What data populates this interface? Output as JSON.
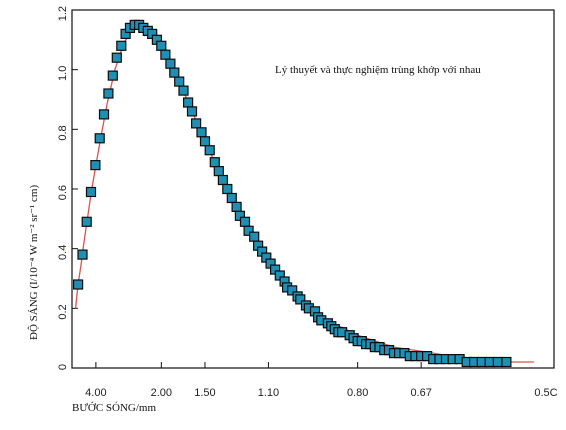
{
  "chart_data": {
    "type": "scatter",
    "annotation": "Lý thuyết và thực nghiệm trùng khớp với nhau",
    "xlabel": "BƯỚC SÓNG/mm",
    "ylabel": "ĐỘ SÁNG (I/10⁻⁴ W m⁻² sr⁻¹ cm)",
    "x_scale": "reciprocal",
    "xlim": [
      6.3,
      0.5
    ],
    "ylim": [
      0,
      1.2
    ],
    "x_ticks": [
      {
        "value": 4.0,
        "label": "4.00"
      },
      {
        "value": 2.0,
        "label": "2.00"
      },
      {
        "value": 1.5,
        "label": "1.50"
      },
      {
        "value": 1.1,
        "label": "1.10"
      },
      {
        "value": 0.8,
        "label": "0.80"
      },
      {
        "value": 0.67,
        "label": "0.67"
      },
      {
        "value": 0.5,
        "label": "0.5C"
      }
    ],
    "y_ticks": [
      {
        "value": 0,
        "label": "0"
      },
      {
        "value": 0.2,
        "label": "0.2"
      },
      {
        "value": 0.4,
        "label": "0.4"
      },
      {
        "value": 0.6,
        "label": "0.6"
      },
      {
        "value": 0.8,
        "label": "0.8"
      },
      {
        "value": 1.0,
        "label": "1.0"
      },
      {
        "value": 1.2,
        "label": "1.2"
      }
    ],
    "colors": {
      "points": "#1f8fb3",
      "curve": "#d9534f",
      "axis": "#111111"
    },
    "series": [
      {
        "kind": "points",
        "x": [
          5.49,
          5.03,
          4.65,
          4.32,
          4.03,
          3.78,
          3.56,
          3.36,
          3.18,
          3.03,
          2.88,
          2.75,
          2.63,
          2.51,
          2.41,
          2.32,
          2.23,
          2.15,
          2.07,
          2.0,
          1.94,
          1.87,
          1.82,
          1.76,
          1.71,
          1.66,
          1.62,
          1.58,
          1.53,
          1.5,
          1.46,
          1.42,
          1.39,
          1.36,
          1.33,
          1.3,
          1.27,
          1.25,
          1.22,
          1.2,
          1.17,
          1.15,
          1.13,
          1.11,
          1.09,
          1.07,
          1.05,
          1.03,
          1.02,
          1.0,
          0.98,
          0.97,
          0.95,
          0.94,
          0.92,
          0.91,
          0.9,
          0.88,
          0.87,
          0.86,
          0.85,
          0.84,
          0.82,
          0.81,
          0.8,
          0.79,
          0.78,
          0.77,
          0.76,
          0.75,
          0.74,
          0.73,
          0.72,
          0.71,
          0.7,
          0.69,
          0.68,
          0.67,
          0.66,
          0.65,
          0.64,
          0.63,
          0.62,
          0.61,
          0.6,
          0.59,
          0.58,
          0.57,
          0.56,
          0.55
        ],
        "y": [
          0.28,
          0.38,
          0.49,
          0.59,
          0.68,
          0.77,
          0.85,
          0.92,
          0.98,
          1.04,
          1.08,
          1.12,
          1.14,
          1.15,
          1.15,
          1.14,
          1.13,
          1.12,
          1.1,
          1.08,
          1.05,
          1.02,
          0.99,
          0.96,
          0.93,
          0.89,
          0.86,
          0.82,
          0.79,
          0.76,
          0.73,
          0.69,
          0.66,
          0.63,
          0.6,
          0.57,
          0.54,
          0.51,
          0.49,
          0.46,
          0.44,
          0.41,
          0.39,
          0.37,
          0.35,
          0.33,
          0.31,
          0.29,
          0.27,
          0.26,
          0.24,
          0.23,
          0.21,
          0.2,
          0.19,
          0.17,
          0.16,
          0.15,
          0.14,
          0.13,
          0.12,
          0.12,
          0.11,
          0.1,
          0.09,
          0.09,
          0.08,
          0.08,
          0.07,
          0.07,
          0.06,
          0.06,
          0.05,
          0.05,
          0.05,
          0.04,
          0.04,
          0.04,
          0.04,
          0.03,
          0.03,
          0.03,
          0.03,
          0.03,
          0.02,
          0.02,
          0.02,
          0.02,
          0.02,
          0.02
        ]
      },
      {
        "kind": "curve",
        "x": [
          5.8,
          5.5,
          5.2,
          4.9,
          4.6,
          4.3,
          4.0,
          3.7,
          3.4,
          3.1,
          2.8,
          2.5,
          2.3,
          2.1,
          1.9,
          1.7,
          1.5,
          1.35,
          1.2,
          1.1,
          1.0,
          0.9,
          0.8,
          0.72,
          0.65,
          0.6,
          0.55,
          0.52
        ],
        "y": [
          0.2,
          0.28,
          0.34,
          0.42,
          0.5,
          0.59,
          0.68,
          0.78,
          0.89,
          1.0,
          1.09,
          1.15,
          1.15,
          1.12,
          1.05,
          0.92,
          0.76,
          0.62,
          0.46,
          0.36,
          0.26,
          0.17,
          0.11,
          0.07,
          0.05,
          0.03,
          0.02,
          0.02
        ]
      }
    ]
  }
}
